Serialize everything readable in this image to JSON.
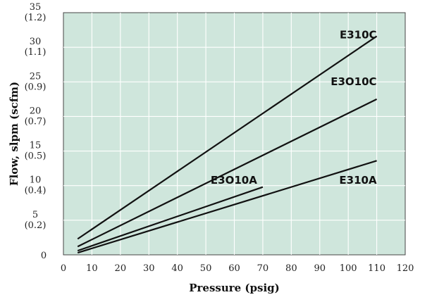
{
  "chart_data": {
    "type": "line",
    "xlabel": "Pressure (psig)",
    "ylabel": "Flow, slpm (scfm)",
    "xlim": [
      0,
      120
    ],
    "ylim": [
      0,
      35
    ],
    "x_ticks": [
      "0",
      "10",
      "20",
      "30",
      "40",
      "50",
      "60",
      "70",
      "80",
      "90",
      "100",
      "110",
      "120"
    ],
    "y_ticks": [
      {
        "value": 0,
        "primary": "0",
        "secondary": ""
      },
      {
        "value": 5,
        "primary": "5",
        "secondary": "(0.2)"
      },
      {
        "value": 10,
        "primary": "10",
        "secondary": "(0.4)"
      },
      {
        "value": 15,
        "primary": "15",
        "secondary": "(0.5)"
      },
      {
        "value": 20,
        "primary": "20",
        "secondary": "(0.7)"
      },
      {
        "value": 25,
        "primary": "25",
        "secondary": "(0.9)"
      },
      {
        "value": 30,
        "primary": "30",
        "secondary": "(1.1)"
      },
      {
        "value": 35,
        "primary": "35",
        "secondary": "(1.2)"
      }
    ],
    "grid": true,
    "series": [
      {
        "name": "E310C",
        "x": [
          5,
          110
        ],
        "y": [
          2.3,
          31.6
        ],
        "label_at": [
          110,
          31.3
        ],
        "label_anchor": "end"
      },
      {
        "name": "E3O10C",
        "x": [
          5,
          110
        ],
        "y": [
          1.2,
          22.5
        ],
        "label_at": [
          110,
          24.5
        ],
        "label_anchor": "end"
      },
      {
        "name": "E3O10A",
        "x": [
          5,
          70
        ],
        "y": [
          0.6,
          9.8
        ],
        "label_at": [
          68,
          10.3
        ],
        "label_anchor": "end"
      },
      {
        "name": "E310A",
        "x": [
          5,
          110
        ],
        "y": [
          0.3,
          13.6
        ],
        "label_at": [
          110,
          10.3
        ],
        "label_anchor": "end"
      }
    ]
  },
  "colors": {
    "plot_background": "#cfe6dc",
    "grid": "#ffffff",
    "lines": "#111111"
  }
}
